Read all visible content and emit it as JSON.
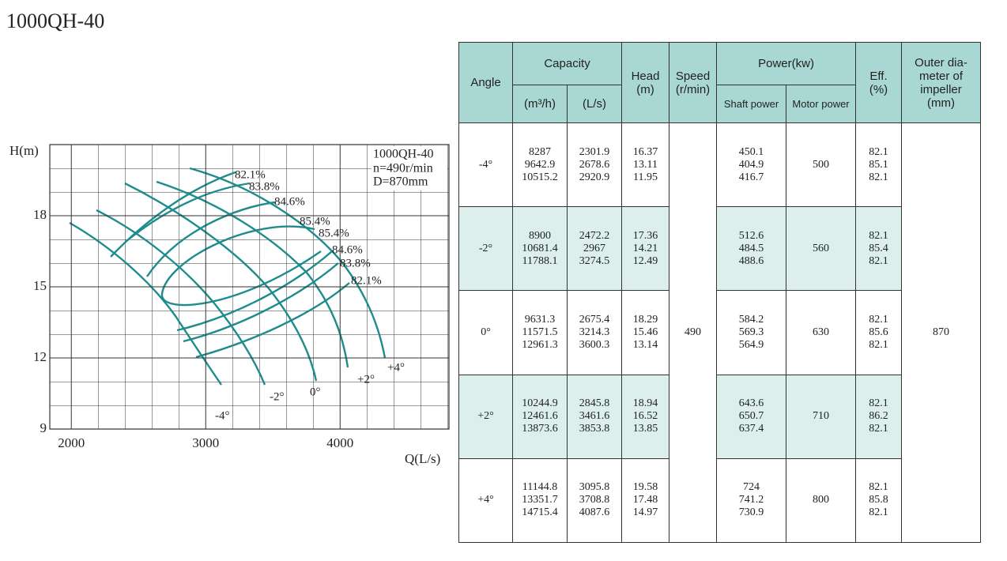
{
  "title": "1000QH-40",
  "chart": {
    "ylabel": "H(m)",
    "xlabel": "Q(L/s)",
    "xlim": [
      1840,
      4810
    ],
    "ylim": [
      9,
      21
    ],
    "xticks": [
      2000,
      3000,
      4000
    ],
    "yticks": [
      9,
      12,
      15,
      18
    ],
    "info": [
      "1000QH-40",
      "n=490r/min",
      "D=870mm"
    ],
    "angle_labels": [
      "-4°",
      "-2°",
      "0°",
      "+2°",
      "+4°"
    ],
    "efficiency_labels": [
      "82.1%",
      "83.8%",
      "84.6%",
      "85.4%",
      "85.4%",
      "84.6%",
      "83.8%",
      "82.1%"
    ]
  },
  "table": {
    "header": {
      "angle": "Angle",
      "capacity": "Capacity",
      "m3h": "(m³/h)",
      "ls": "(L/s)",
      "head": [
        "Head",
        "(m)"
      ],
      "speed": [
        "Speed",
        "(r/min)"
      ],
      "power": "Power(kw)",
      "shaft": "Shaft power",
      "motor": "Motor power",
      "eff": [
        "Eff.",
        "(%)"
      ],
      "outer": [
        "Outer dia-",
        "meter of",
        "impeller",
        "(mm)"
      ]
    },
    "speed": 490,
    "outer": 870,
    "rows": [
      {
        "angle": "-4°",
        "m3h": [
          8287,
          9642.9,
          10515.2
        ],
        "ls": [
          2301.9,
          2678.6,
          2920.9
        ],
        "head": [
          16.37,
          13.11,
          11.95
        ],
        "shaft": [
          450.1,
          404.9,
          416.7
        ],
        "motor": 500,
        "eff": [
          82.1,
          85.1,
          82.1
        ]
      },
      {
        "angle": "-2°",
        "m3h": [
          8900,
          10681.4,
          11788.1
        ],
        "ls": [
          2472.2,
          2967,
          3274.5
        ],
        "head": [
          17.36,
          14.21,
          12.49
        ],
        "shaft": [
          512.6,
          484.5,
          488.6
        ],
        "motor": 560,
        "eff": [
          82.1,
          85.4,
          82.1
        ]
      },
      {
        "angle": "0°",
        "m3h": [
          9631.3,
          11571.5,
          12961.3
        ],
        "ls": [
          2675.4,
          3214.3,
          3600.3
        ],
        "head": [
          18.29,
          15.46,
          13.14
        ],
        "shaft": [
          584.2,
          569.3,
          564.9
        ],
        "motor": 630,
        "eff": [
          82.1,
          85.6,
          82.1
        ]
      },
      {
        "angle": "+2°",
        "m3h": [
          10244.9,
          12461.6,
          13873.6
        ],
        "ls": [
          2845.8,
          3461.6,
          3853.8
        ],
        "head": [
          18.94,
          16.52,
          13.85
        ],
        "shaft": [
          643.6,
          650.7,
          637.4
        ],
        "motor": 710,
        "eff": [
          82.1,
          86.2,
          82.1
        ]
      },
      {
        "angle": "+4°",
        "m3h": [
          11144.8,
          13351.7,
          14715.4
        ],
        "ls": [
          3095.8,
          3708.8,
          4087.6
        ],
        "head": [
          19.58,
          17.48,
          14.97
        ],
        "shaft": [
          724,
          741.2,
          730.9
        ],
        "motor": 800,
        "eff": [
          82.1,
          85.8,
          82.1
        ]
      }
    ]
  }
}
